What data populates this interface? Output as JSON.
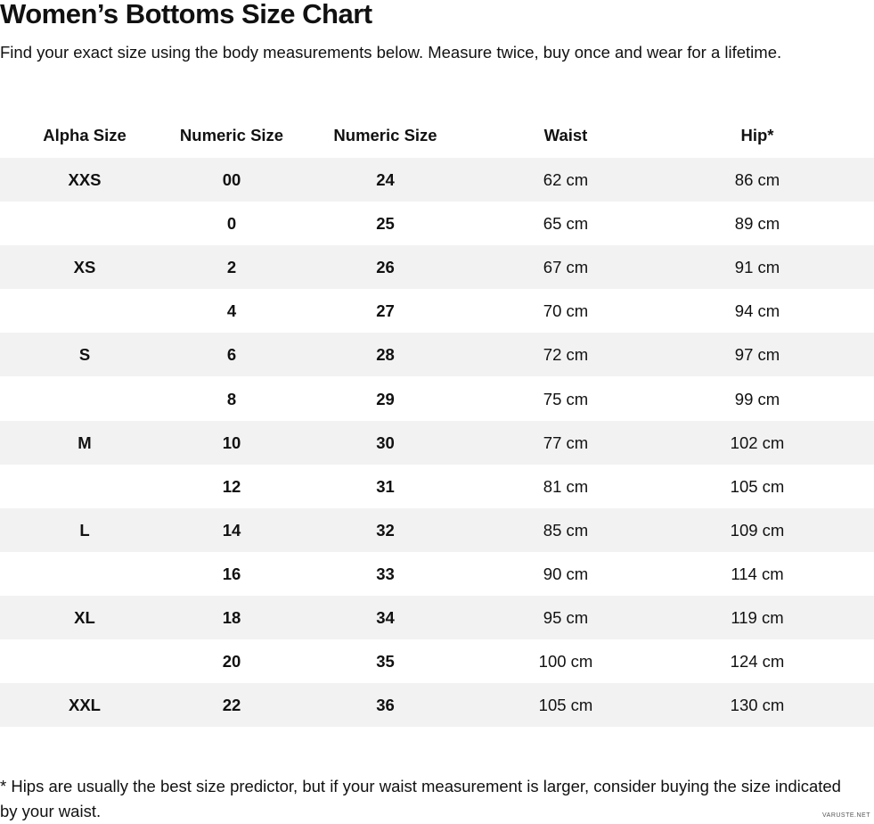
{
  "header": {
    "title": "Women’s Bottoms Size Chart",
    "subtitle": "Find your exact size using the body measurements below. Measure twice, buy once and wear for a lifetime."
  },
  "table": {
    "columns": [
      "Alpha Size",
      "Numeric Size",
      "Numeric Size",
      "Waist",
      "Hip*"
    ],
    "rows": [
      [
        "XXS",
        "00",
        "24",
        "62 cm",
        "86 cm"
      ],
      [
        null,
        "0",
        "25",
        "65 cm",
        "89 cm"
      ],
      [
        "XS",
        "2",
        "26",
        "67 cm",
        "91 cm"
      ],
      [
        null,
        "4",
        "27",
        "70 cm",
        "94 cm"
      ],
      [
        "S",
        "6",
        "28",
        "72 cm",
        "97 cm"
      ],
      [
        null,
        "8",
        "29",
        "75 cm",
        "99 cm"
      ],
      [
        "M",
        "10",
        "30",
        "77 cm",
        "102 cm"
      ],
      [
        null,
        "12",
        "31",
        "81 cm",
        "105 cm"
      ],
      [
        "L",
        "14",
        "32",
        "85 cm",
        "109 cm"
      ],
      [
        null,
        "16",
        "33",
        "90 cm",
        "114 cm"
      ],
      [
        "XL",
        "18",
        "34",
        "95 cm",
        "119 cm"
      ],
      [
        null,
        "20",
        "35",
        "100 cm",
        "124 cm"
      ],
      [
        "XXL",
        "22",
        "36",
        "105 cm",
        "130 cm"
      ]
    ]
  },
  "footnote": "* Hips are usually the best size predictor, but if your waist measurement is larger, consider buying the size indicated by your waist.",
  "watermark": "VARUSTE.NET"
}
